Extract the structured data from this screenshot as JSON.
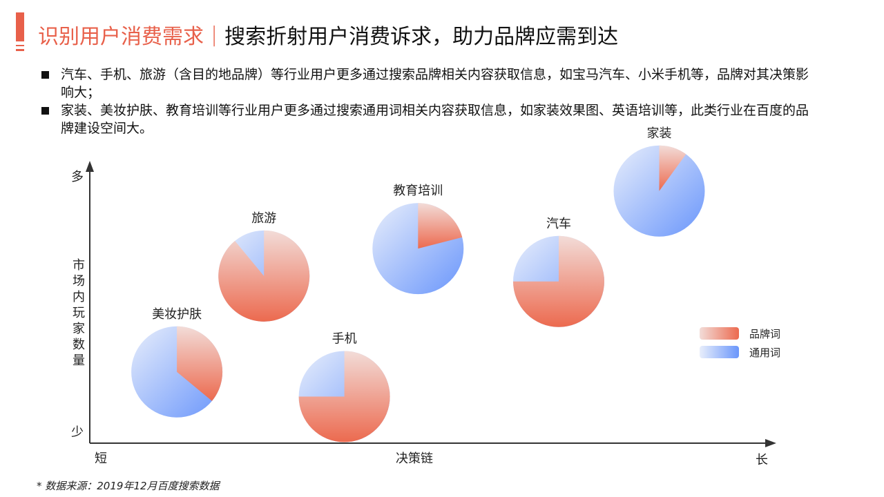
{
  "title": {
    "highlight": "识别用户消费需求",
    "separator": "|",
    "main": "搜索折射用户消费诉求，助力品牌应需到达"
  },
  "bullets": [
    "汽车、手机、旅游（含目的地品牌）等行业用户更多通过搜索品牌相关内容获取信息，如宝马汽车、小米手机等，品牌对其决策影响大；",
    "家装、美妆护肤、教育培训等行业用户更多通过搜索通用词相关内容获取信息，如家装效果图、英语培训等，此类行业在百度的品牌建设空间大。"
  ],
  "colors": {
    "accent": "#e8604a",
    "brand_light": "#f2dcd8",
    "brand_dark": "#ec6a4f",
    "generic_light": "#e8eefb",
    "generic_dark": "#6a96fb",
    "axis": "#333333"
  },
  "chart_data": {
    "type": "pie",
    "xlabel": "决策链",
    "ylabel": "市场内玩家数量",
    "x_ticks": {
      "low": "短",
      "high": "长"
    },
    "y_ticks": {
      "low": "少",
      "high": "多"
    },
    "xlim": [
      0,
      10
    ],
    "ylim": [
      0,
      10
    ],
    "legend": {
      "position": "right",
      "entries": [
        {
          "name": "品牌词",
          "key": "brand"
        },
        {
          "name": "通用词",
          "key": "generic"
        }
      ]
    },
    "pies": [
      {
        "label": "美妆护肤",
        "x": 1.3,
        "y": 2.6,
        "brand": 0.36,
        "generic": 0.64
      },
      {
        "label": "旅游",
        "x": 2.6,
        "y": 6.1,
        "brand": 0.89,
        "generic": 0.11
      },
      {
        "label": "手机",
        "x": 3.8,
        "y": 1.7,
        "brand": 0.75,
        "generic": 0.25
      },
      {
        "label": "教育培训",
        "x": 4.9,
        "y": 7.1,
        "brand": 0.21,
        "generic": 0.79
      },
      {
        "label": "汽车",
        "x": 7.0,
        "y": 5.9,
        "brand": 0.75,
        "generic": 0.25
      },
      {
        "label": "家装",
        "x": 8.5,
        "y": 9.2,
        "brand": 0.1,
        "generic": 0.9
      }
    ]
  },
  "footnote": "*   数据来源：2019年12月百度搜索数据"
}
